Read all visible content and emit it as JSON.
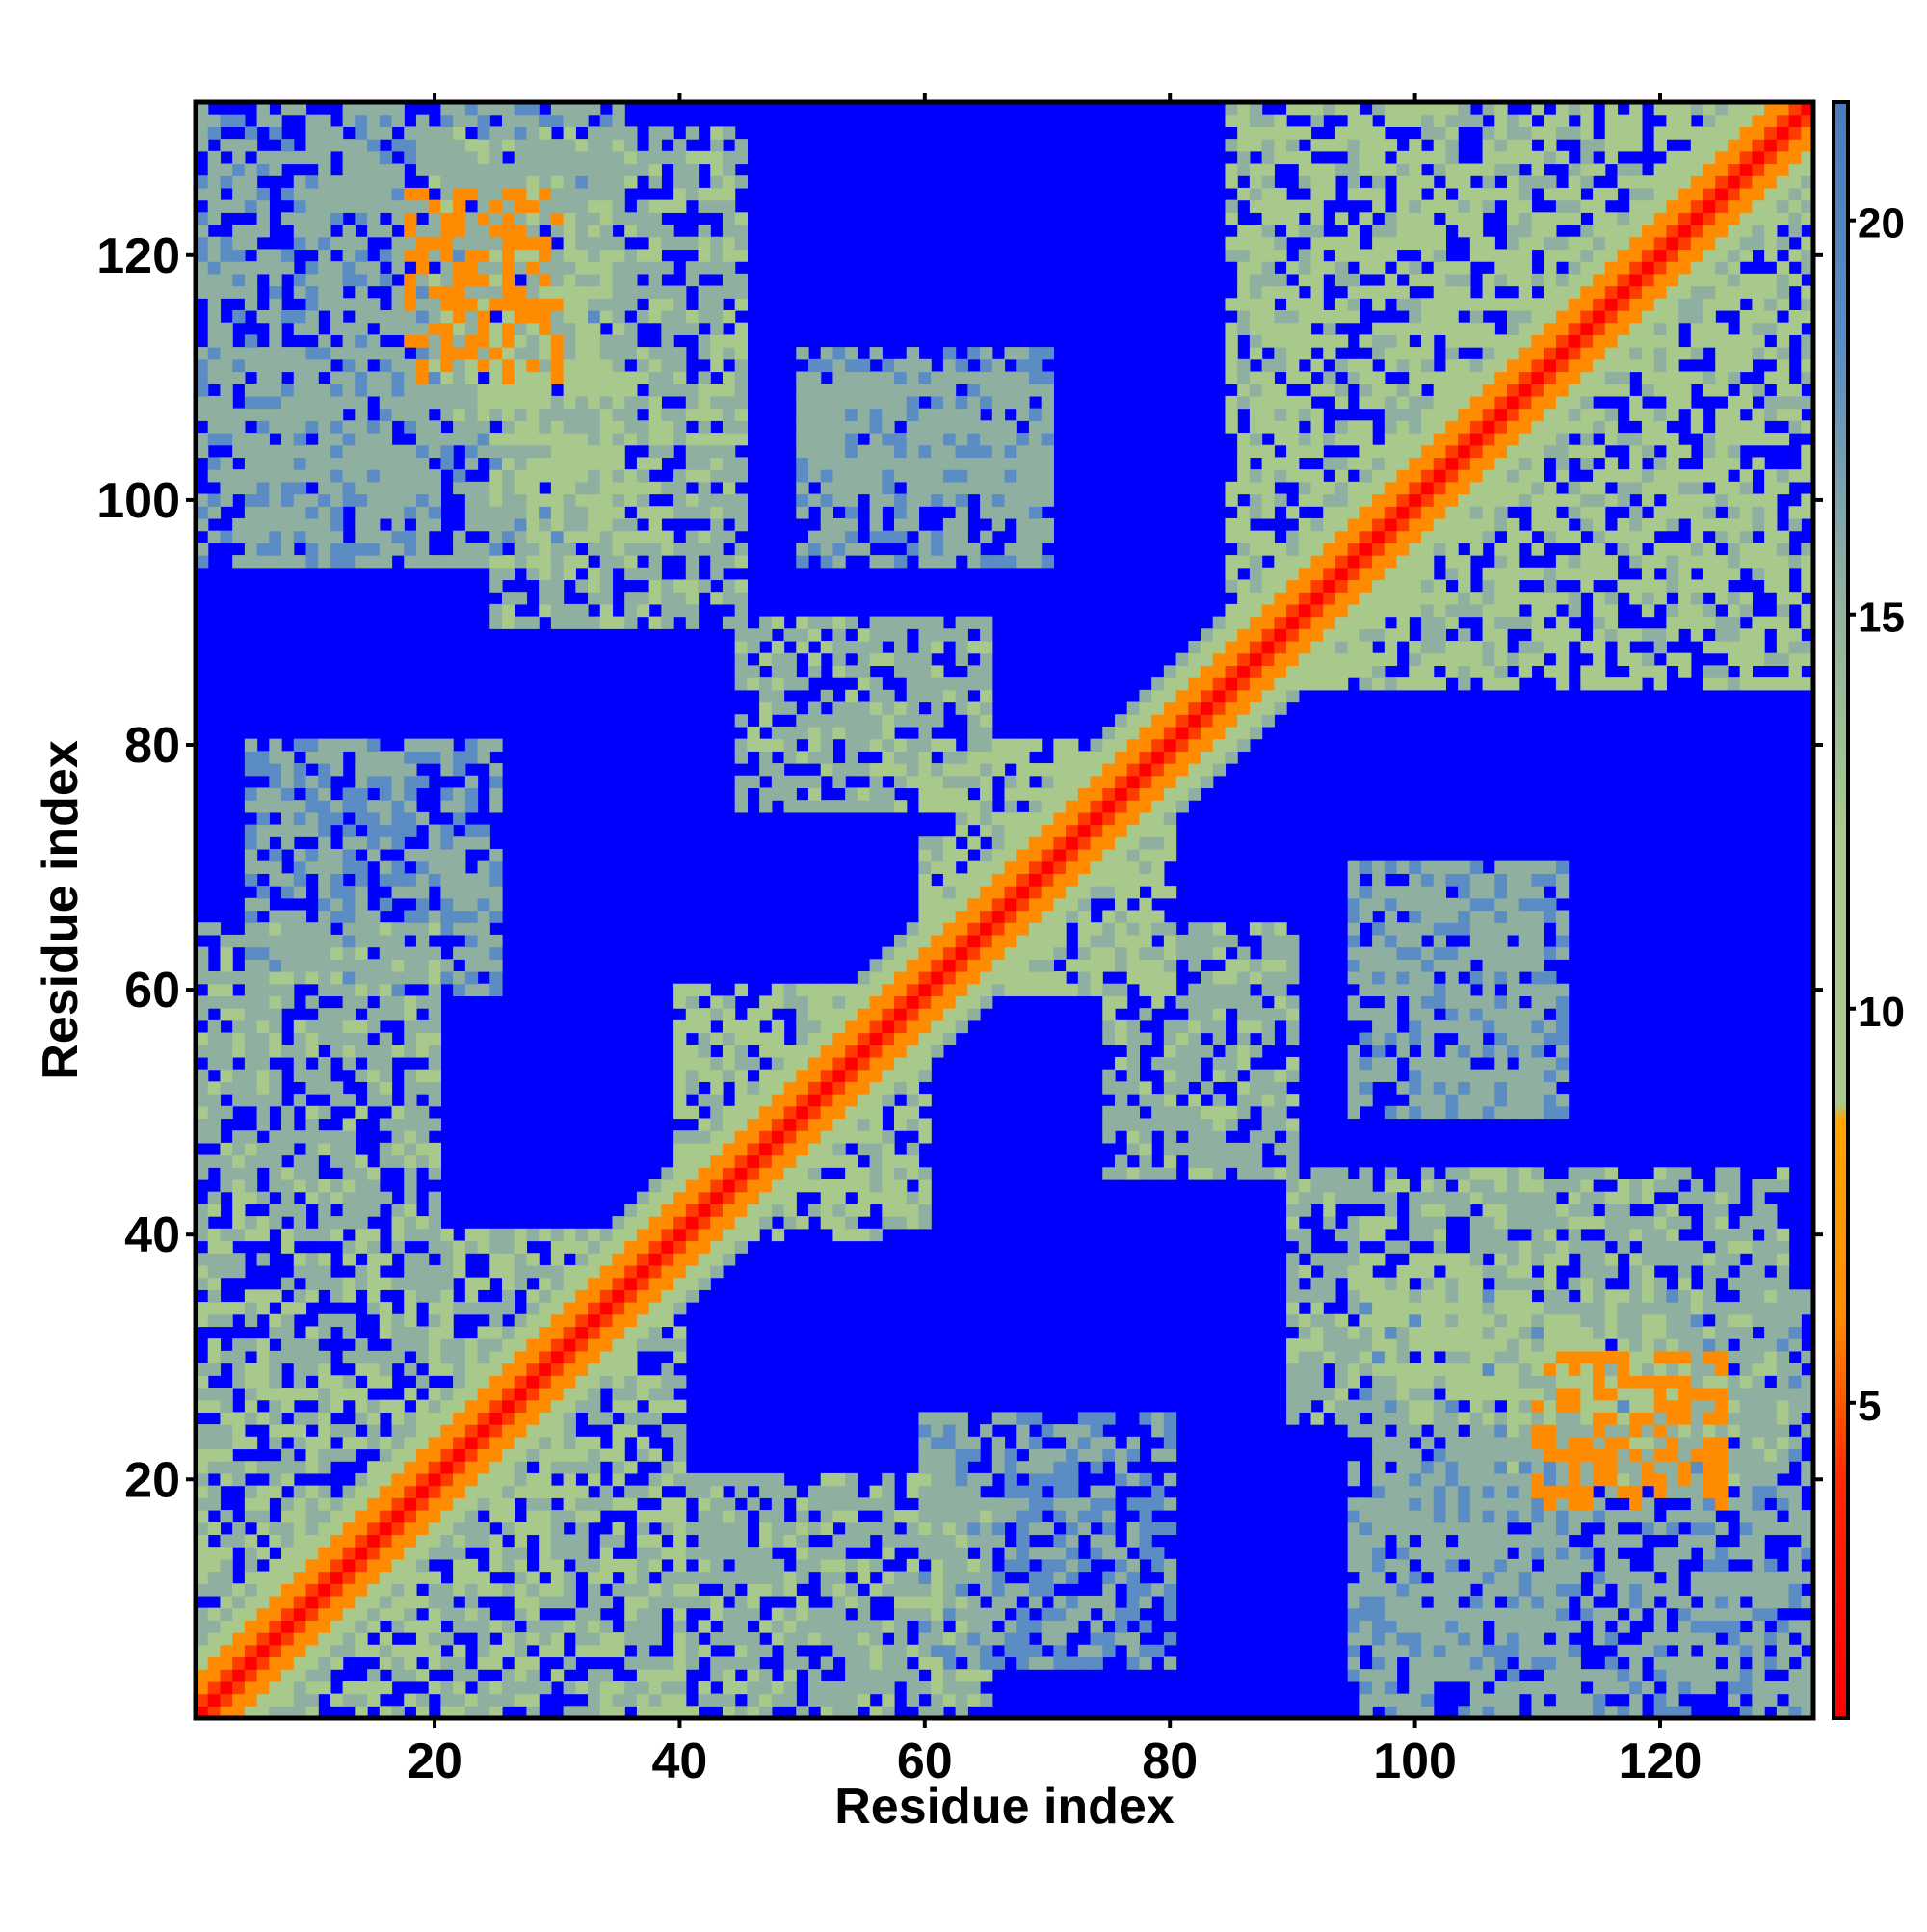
{
  "chart_data": {
    "type": "heatmap",
    "xlabel": "Residue index",
    "ylabel": "Residue index",
    "xlim": [
      1,
      132
    ],
    "ylim": [
      1,
      132
    ],
    "x_ticks": [
      20,
      40,
      60,
      80,
      100,
      120
    ],
    "y_ticks": [
      20,
      40,
      60,
      80,
      100,
      120
    ],
    "n_residues": 132,
    "colorbar": {
      "range": [
        1,
        21.5
      ],
      "ticks": [
        5,
        10,
        15,
        20
      ],
      "placement": "right"
    },
    "colors": {
      "background": "#0000ff",
      "diagonal": "#ff0000",
      "near": "#ff8c00",
      "mid": "#a8c88c",
      "far": "#5b8cc4",
      "frame": "#000000"
    },
    "values": [
      {
        "row_start": 1,
        "row_end": 132,
        "col_start": 1,
        "col_end": 132,
        "value": 21
      },
      {
        "diagonal_band": 0,
        "value": 1.5
      },
      {
        "diagonal_band": 1,
        "value": 4
      },
      {
        "diagonal_band": 2,
        "value": 6
      },
      {
        "diagonal_band": 3,
        "value": 8
      },
      {
        "diagonal_band": 4,
        "value": 10
      },
      {
        "diagonal_band": 5,
        "value": 12
      },
      {
        "diagonal_band": 6,
        "value": 14
      },
      {
        "block": [
          1,
          40,
          1,
          40
        ],
        "value": 13
      },
      {
        "block": [
          40,
          60,
          40,
          60
        ],
        "value": 12
      },
      {
        "block": [
          60,
          80,
          60,
          80
        ],
        "value": 12
      },
      {
        "block": [
          85,
          132,
          85,
          132
        ],
        "value": 12
      },
      {
        "block": [
          95,
          132,
          1,
          35
        ],
        "value": 15
      },
      {
        "block": [
          1,
          35,
          95,
          132
        ],
        "value": 15
      },
      {
        "block": [
          90,
          110,
          25,
          45
        ],
        "value": 14
      },
      {
        "block": [
          25,
          45,
          90,
          110
        ],
        "value": 14
      },
      {
        "block": [
          100,
          112,
          50,
          70
        ],
        "value": 16
      },
      {
        "block": [
          50,
          70,
          100,
          112
        ],
        "value": 16
      },
      {
        "block": [
          40,
          65,
          1,
          20
        ],
        "value": 14
      },
      {
        "block": [
          1,
          20,
          40,
          65
        ],
        "value": 14
      },
      {
        "block": [
          60,
          80,
          5,
          25
        ],
        "value": 16
      },
      {
        "block": [
          5,
          25,
          60,
          80
        ],
        "value": 16
      },
      {
        "block": [
          45,
          65,
          75,
          90
        ],
        "value": 14
      },
      {
        "block": [
          75,
          90,
          45,
          65
        ],
        "value": 14
      },
      {
        "block": [
          50,
          70,
          95,
          110
        ],
        "value": 15
      },
      {
        "block": [
          95,
          110,
          50,
          70
        ],
        "value": 15
      },
      {
        "block": [
          20,
          45,
          105,
          130
        ],
        "value": 14
      },
      {
        "block": [
          105,
          130,
          20,
          45
        ],
        "value": 14
      },
      {
        "block": [
          5,
          20,
          95,
          112
        ],
        "value": 16
      },
      {
        "block": [
          95,
          112,
          5,
          20
        ],
        "value": 16
      },
      {
        "block": [
          110,
          125,
          18,
          30
        ],
        "value": 8
      },
      {
        "block": [
          18,
          30,
          110,
          125
        ],
        "value": 8
      },
      {
        "block": [
          95,
          105,
          28,
          38
        ],
        "value": 9
      },
      {
        "block": [
          28,
          38,
          95,
          105
        ],
        "value": 9
      },
      {
        "block": [
          25,
          35,
          100,
          120
        ],
        "value": 9
      },
      {
        "block": [
          100,
          120,
          25,
          35
        ],
        "value": 9
      }
    ]
  }
}
